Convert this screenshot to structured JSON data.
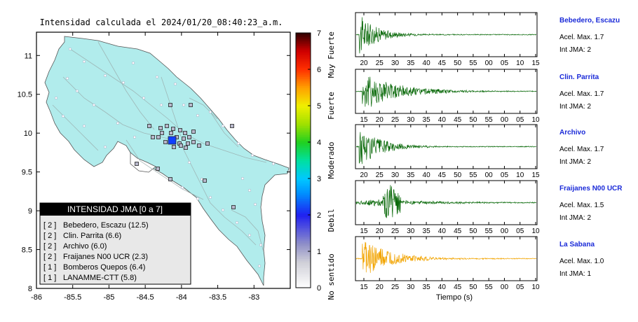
{
  "map": {
    "title": "Intensidad calculada el 2024/01/20_08:40:23_a.m.",
    "x_ticks": [
      "-86",
      "-85.5",
      "-85",
      "-84.5",
      "-84",
      "-83.5",
      "-83"
    ],
    "y_ticks": [
      "8",
      "8.5",
      "9",
      "9.5",
      "10",
      "10.5",
      "11"
    ],
    "xlim": [
      -86,
      -82.5
    ],
    "ylim": [
      8,
      11.3
    ],
    "land_color": "#b1ecec",
    "epicenter_color": "#1040ff",
    "legend_title": "INTENSIDAD JMA [0 a 7]",
    "legend_rows": [
      {
        "level": "[ 2 ]",
        "station": "Bebedero, Escazu (12.5)"
      },
      {
        "level": "[ 2 ]",
        "station": "Clin. Parrita (6.6)"
      },
      {
        "level": "[ 2 ]",
        "station": "Archivo (6.0)"
      },
      {
        "level": "[ 2 ]",
        "station": "Fraijanes N00 UCR (2.3)"
      },
      {
        "level": "[ 1 ]",
        "station": "Bomberos Quepos (6.4)"
      },
      {
        "level": "[ 1 ]",
        "station": "LANAMME-CTT (5.8)"
      }
    ]
  },
  "colorbar": {
    "ticks": [
      "0",
      "1",
      "2",
      "3",
      "4",
      "5",
      "6",
      "7"
    ],
    "range": [
      0,
      7
    ],
    "labels": [
      "No sentido",
      "Debil",
      "Moderado",
      "Fuerte",
      "Muy Fuerte"
    ]
  },
  "seismograms": {
    "xlabel": "Tiempo (s)",
    "panels": [
      {
        "station": "Bebedero, Escazu",
        "acel": "Acel. Max. 1.7",
        "int": "Int JMA: 2",
        "color": "#0b6a0b",
        "ticks": [
          "20",
          "25",
          "30",
          "35",
          "40",
          "45",
          "50",
          "55",
          "00",
          "05",
          "10",
          "15"
        ]
      },
      {
        "station": "Clin. Parrita",
        "acel": "Acel. Max. 1.7",
        "int": "Int JMA: 2",
        "color": "#0b6a0b",
        "ticks": [
          "15",
          "20",
          "25",
          "30",
          "35",
          "40",
          "45",
          "50",
          "55",
          "00",
          "05",
          "10"
        ]
      },
      {
        "station": "Archivo",
        "acel": "Acel. Max. 1.7",
        "int": "Int JMA: 2",
        "color": "#0b6a0b",
        "ticks": [
          "20",
          "25",
          "30",
          "35",
          "40",
          "45",
          "50",
          "55",
          "00",
          "05",
          "10",
          "15"
        ]
      },
      {
        "station": "Fraijanes N00 UCR",
        "acel": "Acel. Max. 1.5",
        "int": "Int JMA: 2",
        "color": "#0b6a0b",
        "ticks": [
          "15",
          "20",
          "25",
          "30",
          "35",
          "40",
          "45",
          "50",
          "55",
          "00",
          "05",
          "10"
        ]
      },
      {
        "station": "La Sabana",
        "acel": "Acel. Max. 1.0",
        "int": "Int JMA: 1",
        "color": "#f2a400",
        "ticks": [
          "15",
          "20",
          "25",
          "30",
          "35",
          "40",
          "45",
          "50",
          "55",
          "00",
          "05",
          "10"
        ]
      }
    ]
  }
}
